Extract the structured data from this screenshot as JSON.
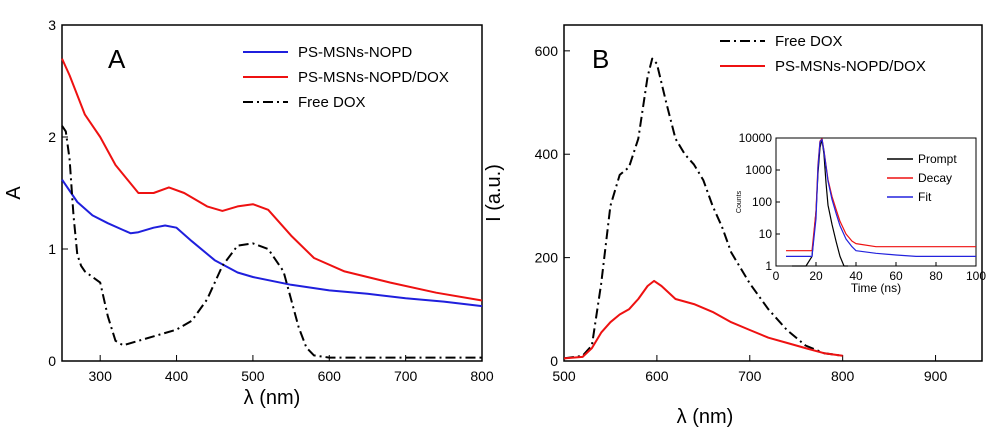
{
  "figure": {
    "panel_a_letter": "A",
    "panel_b_letter": "B",
    "inset_counts_label": "Counts"
  },
  "colors": {
    "blue": "#1f1fdd",
    "red": "#ee1111",
    "black": "#000000",
    "inset_blue": "#2323dd"
  },
  "chart_data": [
    {
      "type": "line",
      "panel": "A",
      "xlabel": "λ (nm)",
      "ylabel": "A",
      "xlim": [
        250,
        800
      ],
      "ylim": [
        0,
        3
      ],
      "xticks": [
        300,
        400,
        500,
        600,
        700,
        800
      ],
      "yticks": [
        0,
        1,
        2,
        3
      ],
      "grid": false,
      "legend": "top-right",
      "series": [
        {
          "name": "PS-MSNs-NOPD",
          "color": "#1f1fdd",
          "dash": "solid",
          "x": [
            250,
            270,
            290,
            310,
            330,
            340,
            350,
            370,
            385,
            400,
            420,
            450,
            480,
            500,
            550,
            600,
            650,
            700,
            750,
            800
          ],
          "y": [
            1.62,
            1.42,
            1.3,
            1.23,
            1.17,
            1.14,
            1.15,
            1.19,
            1.21,
            1.19,
            1.07,
            0.9,
            0.79,
            0.75,
            0.68,
            0.63,
            0.6,
            0.56,
            0.53,
            0.49
          ]
        },
        {
          "name": "PS-MSNs-NOPD/DOX",
          "color": "#ee1111",
          "dash": "solid",
          "x": [
            250,
            260,
            280,
            300,
            320,
            350,
            370,
            390,
            410,
            440,
            460,
            480,
            500,
            520,
            550,
            580,
            620,
            680,
            740,
            800
          ],
          "y": [
            2.7,
            2.55,
            2.2,
            2.0,
            1.75,
            1.5,
            1.5,
            1.55,
            1.5,
            1.38,
            1.34,
            1.38,
            1.4,
            1.35,
            1.12,
            0.92,
            0.8,
            0.7,
            0.61,
            0.54
          ]
        },
        {
          "name": "Free DOX",
          "color": "#000000",
          "dash": "dashdot",
          "x": [
            250,
            255,
            260,
            265,
            270,
            275,
            280,
            290,
            300,
            310,
            320,
            330,
            350,
            380,
            400,
            420,
            440,
            460,
            480,
            500,
            520,
            540,
            550,
            560,
            570,
            580,
            600,
            650,
            700,
            800
          ],
          "y": [
            2.1,
            2.05,
            1.8,
            1.3,
            0.95,
            0.85,
            0.8,
            0.75,
            0.7,
            0.4,
            0.18,
            0.14,
            0.18,
            0.24,
            0.28,
            0.36,
            0.55,
            0.85,
            1.03,
            1.05,
            1.0,
            0.8,
            0.55,
            0.3,
            0.12,
            0.05,
            0.03,
            0.03,
            0.03,
            0.03
          ]
        }
      ]
    },
    {
      "type": "line",
      "panel": "B",
      "xlabel": "λ (nm)",
      "ylabel": "I (a.u.)",
      "xlim": [
        500,
        950
      ],
      "ylim": [
        0,
        650
      ],
      "xticks": [
        500,
        600,
        700,
        800,
        900
      ],
      "yticks": [
        0,
        200,
        400,
        600
      ],
      "grid": false,
      "legend": "top-center",
      "series": [
        {
          "name": "Free DOX",
          "color": "#000000",
          "dash": "dashdot",
          "x": [
            500,
            520,
            530,
            540,
            550,
            560,
            570,
            580,
            590,
            595,
            600,
            610,
            620,
            630,
            640,
            650,
            660,
            670,
            680,
            700,
            720,
            740,
            760,
            780,
            800
          ],
          "y": [
            5,
            10,
            30,
            150,
            300,
            360,
            375,
            430,
            550,
            585,
            575,
            500,
            430,
            400,
            380,
            350,
            300,
            260,
            210,
            150,
            100,
            60,
            30,
            15,
            10
          ]
        },
        {
          "name": "PS-MSNs-NOPD/DOX",
          "color": "#ee1111",
          "dash": "solid",
          "x": [
            500,
            520,
            530,
            540,
            550,
            560,
            570,
            580,
            590,
            597,
            605,
            620,
            640,
            660,
            680,
            700,
            720,
            740,
            760,
            780,
            800
          ],
          "y": [
            5,
            8,
            25,
            55,
            75,
            90,
            100,
            120,
            145,
            155,
            145,
            120,
            110,
            95,
            75,
            60,
            45,
            35,
            25,
            15,
            10
          ]
        }
      ]
    },
    {
      "type": "line",
      "panel": "B-inset",
      "xlabel": "Time (ns)",
      "ylabel": "Counts",
      "xlim": [
        0,
        100
      ],
      "ylim": [
        1,
        10000
      ],
      "yscale": "log",
      "xticks": [
        0,
        20,
        40,
        60,
        80,
        100
      ],
      "yticks": [
        1,
        10,
        100,
        1000,
        10000
      ],
      "grid": false,
      "legend": "right",
      "series": [
        {
          "name": "Prompt",
          "color": "#000000",
          "x": [
            8,
            15,
            18,
            20,
            21,
            22,
            23,
            24,
            25,
            26,
            28,
            30,
            32,
            34,
            36
          ],
          "y": [
            1,
            1,
            2,
            50,
            800,
            5000,
            9000,
            3000,
            400,
            80,
            20,
            6,
            2,
            1,
            1
          ]
        },
        {
          "name": "Decay",
          "color": "#ee1111",
          "x": [
            5,
            10,
            15,
            18,
            20,
            21,
            22,
            23,
            24,
            26,
            28,
            30,
            32,
            35,
            38,
            40,
            50,
            60,
            70,
            80,
            90,
            100
          ],
          "y": [
            3,
            3,
            3,
            3,
            50,
            1500,
            8000,
            9500,
            4000,
            500,
            150,
            60,
            25,
            10,
            6,
            5,
            4,
            4,
            4,
            4,
            4,
            4
          ]
        },
        {
          "name": "Fit",
          "color": "#2323dd",
          "x": [
            5,
            10,
            15,
            18,
            20,
            21,
            22,
            23,
            24,
            26,
            28,
            30,
            32,
            35,
            38,
            40,
            50,
            60,
            70,
            80,
            90,
            100
          ],
          "y": [
            2,
            2,
            2,
            2,
            30,
            1200,
            7500,
            9000,
            3800,
            450,
            120,
            45,
            18,
            7,
            4,
            3,
            2.5,
            2.2,
            2,
            2,
            2,
            2
          ]
        }
      ]
    }
  ]
}
